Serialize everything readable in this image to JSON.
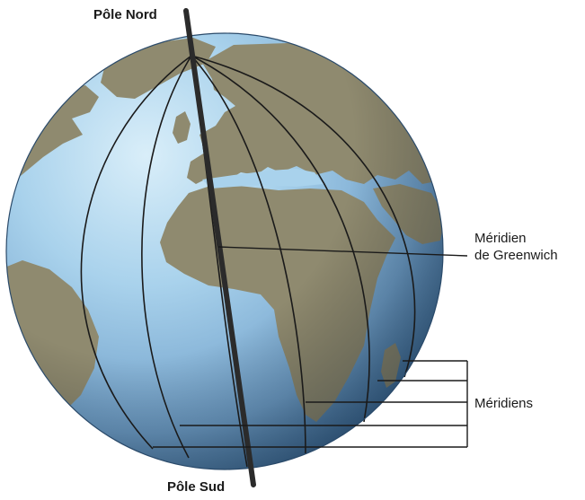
{
  "labels": {
    "north_pole": "Pôle Nord",
    "south_pole": "Pôle Sud",
    "greenwich_line1": "Méridien",
    "greenwich_line2": "de Greenwich",
    "meridians": "Méridiens"
  },
  "colors": {
    "ocean_light": "#cfe6f4",
    "ocean_mid": "#8fc0e0",
    "ocean_dark": "#3d6f9b",
    "land": "#8f8a6f",
    "land_dark": "#6d6a52",
    "line": "#1a1a1a",
    "axis": "#2b2b2b"
  }
}
